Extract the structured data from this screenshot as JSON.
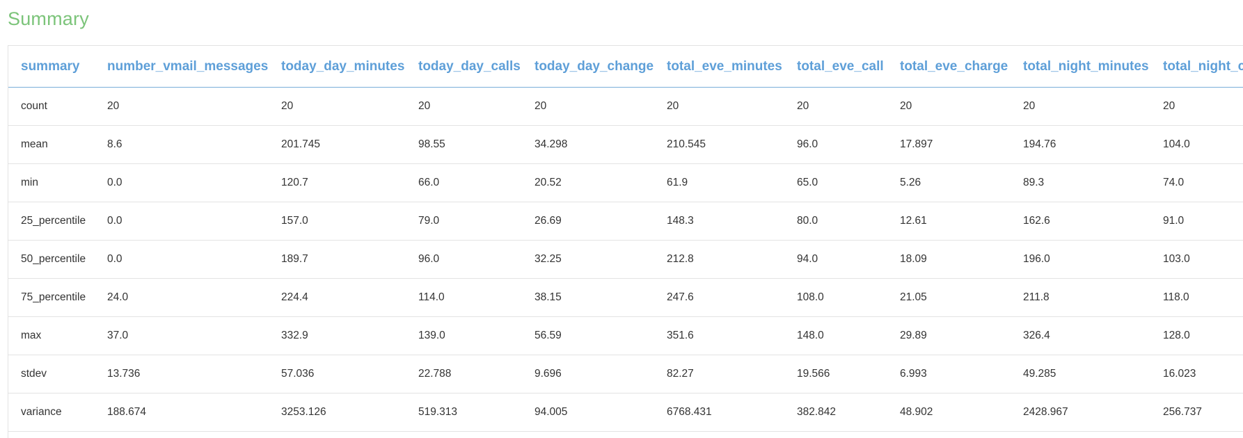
{
  "page": {
    "title": "Summary"
  },
  "table": {
    "columns": [
      "summary",
      "number_vmail_messages",
      "today_day_minutes",
      "today_day_calls",
      "today_day_change",
      "total_eve_minutes",
      "total_eve_call",
      "total_eve_charge",
      "total_night_minutes",
      "total_night_c"
    ],
    "rows": [
      [
        "count",
        "20",
        "20",
        "20",
        "20",
        "20",
        "20",
        "20",
        "20",
        "20"
      ],
      [
        "mean",
        "8.6",
        "201.745",
        "98.55",
        "34.298",
        "210.545",
        "96.0",
        "17.897",
        "194.76",
        "104.0"
      ],
      [
        "min",
        "0.0",
        "120.7",
        "66.0",
        "20.52",
        "61.9",
        "65.0",
        "5.26",
        "89.3",
        "74.0"
      ],
      [
        "25_percentile",
        "0.0",
        "157.0",
        "79.0",
        "26.69",
        "148.3",
        "80.0",
        "12.61",
        "162.6",
        "91.0"
      ],
      [
        "50_percentile",
        "0.0",
        "189.7",
        "96.0",
        "32.25",
        "212.8",
        "94.0",
        "18.09",
        "196.0",
        "103.0"
      ],
      [
        "75_percentile",
        "24.0",
        "224.4",
        "114.0",
        "38.15",
        "247.6",
        "108.0",
        "21.05",
        "211.8",
        "118.0"
      ],
      [
        "max",
        "37.0",
        "332.9",
        "139.0",
        "56.59",
        "351.6",
        "148.0",
        "29.89",
        "326.4",
        "128.0"
      ],
      [
        "stdev",
        "13.736",
        "57.036",
        "22.788",
        "9.696",
        "82.27",
        "19.566",
        "6.993",
        "49.285",
        "16.023"
      ],
      [
        "variance",
        "188.674",
        "3253.126",
        "519.313",
        "94.005",
        "6768.431",
        "382.842",
        "48.902",
        "2428.967",
        "256.737"
      ]
    ]
  },
  "colors": {
    "title": "#7cc47a",
    "header_text": "#5e9fd8",
    "header_border": "#7aaed9",
    "row_border": "#e3e3e3",
    "cell_text": "#333333"
  }
}
